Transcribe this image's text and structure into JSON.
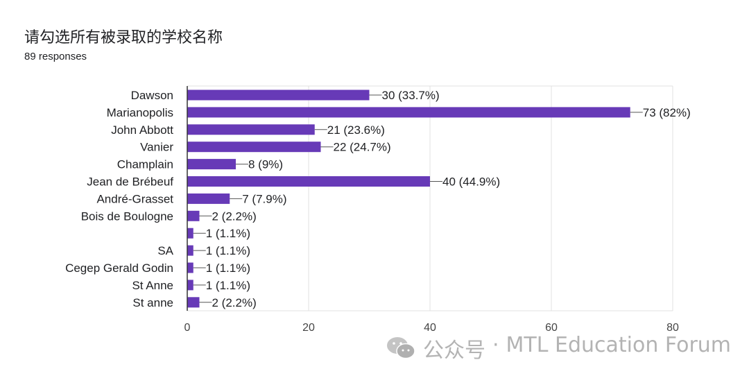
{
  "title": "请勾选所有被录取的学校名称",
  "subtitle": "89 responses",
  "watermark": {
    "prefix": "公众号",
    "separator": "·",
    "account": "MTL Education Forum",
    "icon": "wechat-icon"
  },
  "colors": {
    "bar": "#673ab7",
    "grid": "#e0e0e0",
    "axis": "#333333",
    "text": "#202124"
  },
  "chart_data": {
    "type": "bar",
    "orientation": "horizontal",
    "categories": [
      "Dawson",
      "Marianopolis",
      "John Abbott",
      "Vanier",
      "Champlain",
      "Jean de Brébeuf",
      "André-Grasset",
      "Bois de Boulogne",
      "",
      "SA",
      "Cegep Gerald Godin",
      "St Anne",
      "St anne"
    ],
    "values": [
      30,
      73,
      21,
      22,
      8,
      40,
      7,
      2,
      1,
      1,
      1,
      1,
      2
    ],
    "data_labels": [
      "30 (33.7%)",
      "73 (82%)",
      "21 (23.6%)",
      "22 (24.7%)",
      "8 (9%)",
      "40 (44.9%)",
      "7 (7.9%)",
      "2 (2.2%)",
      "1 (1.1%)",
      "1 (1.1%)",
      "1 (1.1%)",
      "1 (1.1%)",
      "2 (2.2%)"
    ],
    "xticks": [
      0,
      20,
      40,
      60,
      80
    ],
    "xlim": [
      0,
      80
    ],
    "grid": true
  }
}
